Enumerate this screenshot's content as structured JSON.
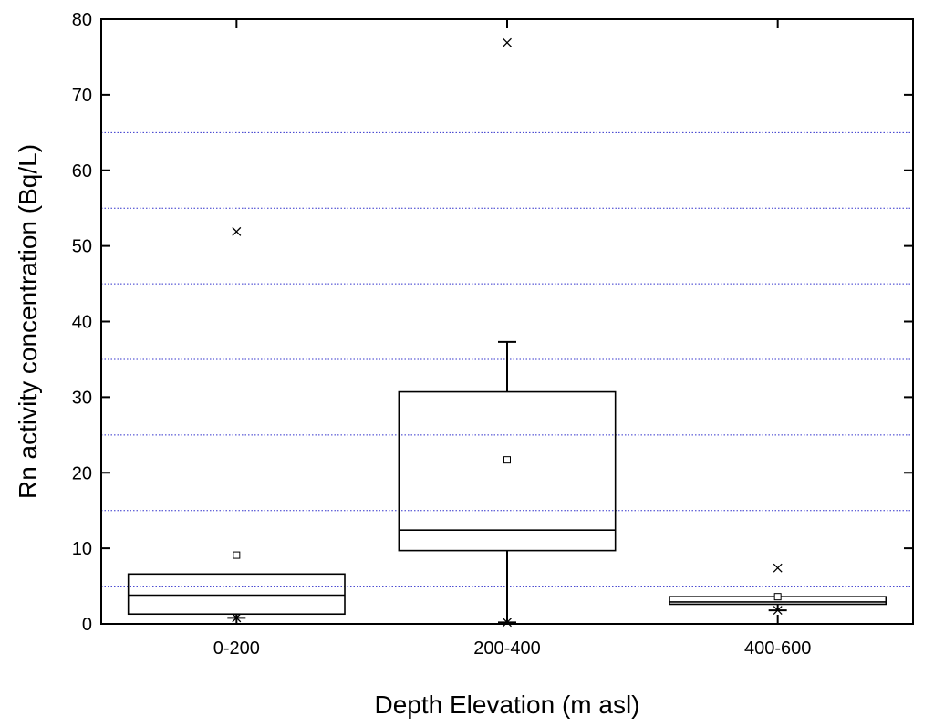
{
  "chart_data": {
    "type": "box",
    "xlabel": "Depth Elevation (m asl)",
    "ylabel": "Rn activity concentration (Bq/L)",
    "ylim": [
      0,
      80
    ],
    "yticks": [
      0,
      10,
      20,
      30,
      40,
      50,
      60,
      70,
      80
    ],
    "grid": {
      "y_minor_dotted": [
        5,
        15,
        25,
        35,
        45,
        55,
        65,
        75
      ],
      "color": "#3333cc"
    },
    "categories": [
      "0-200",
      "200-400",
      "400-600"
    ],
    "boxes": [
      {
        "category": "0-200",
        "whisker_low": 0.8,
        "q1": 1.3,
        "median": 3.8,
        "q3": 6.6,
        "whisker_high": 6.6,
        "mean": 9.1,
        "min": 0.8,
        "max": 51.9
      },
      {
        "category": "200-400",
        "whisker_low": 0.2,
        "q1": 9.7,
        "median": 12.4,
        "q3": 30.7,
        "whisker_high": 37.3,
        "mean": 21.7,
        "min": 0.2,
        "max": 76.9
      },
      {
        "category": "400-600",
        "whisker_low": 1.8,
        "q1": 2.6,
        "median": 2.9,
        "q3": 3.6,
        "whisker_high": 3.6,
        "mean": 3.6,
        "min": 1.8,
        "max": 7.4
      }
    ]
  }
}
